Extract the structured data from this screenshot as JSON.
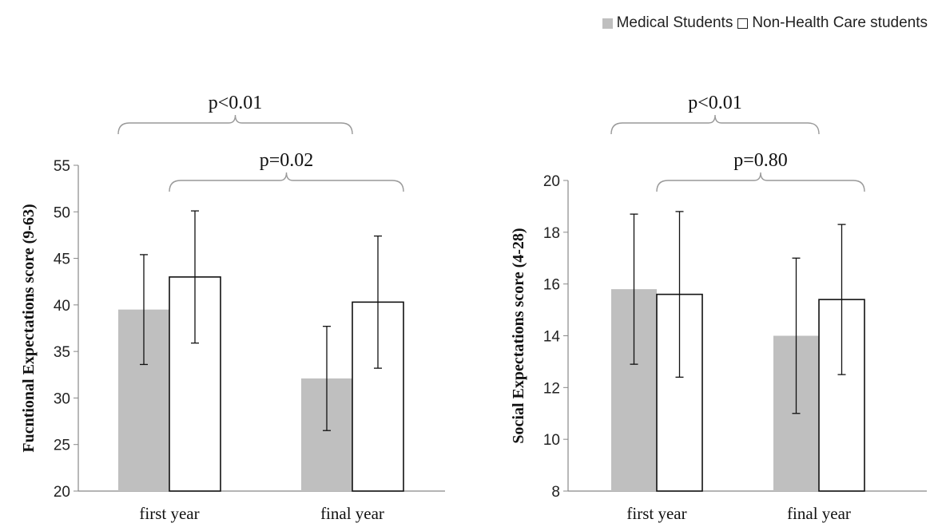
{
  "legend": {
    "items": [
      {
        "label": "Medical Students",
        "color": "#bfbfbf",
        "style": "filled"
      },
      {
        "label": "Non-Health Care students",
        "color": "#ffffff",
        "style": "outlined"
      }
    ]
  },
  "chart_data": [
    {
      "type": "bar",
      "ylabel": "Fucntional Expectations score (9-63)",
      "xlabel": "",
      "ylim": [
        20,
        55
      ],
      "yticks": [
        20,
        25,
        30,
        35,
        40,
        45,
        50,
        55
      ],
      "categories": [
        "first year",
        "final year"
      ],
      "series": [
        {
          "name": "Medical Students",
          "values": [
            39.5,
            32.1
          ],
          "err_low": [
            33.6,
            26.5
          ],
          "err_high": [
            45.4,
            37.7
          ],
          "color": "#bfbfbf"
        },
        {
          "name": "Non-Health Care students",
          "values": [
            43.0,
            40.3
          ],
          "err_low": [
            35.9,
            33.2
          ],
          "err_high": [
            50.1,
            47.4
          ],
          "color": "#ffffff"
        }
      ],
      "annotations": [
        {
          "text": "p<0.01",
          "from": {
            "category": 0,
            "series": 0
          },
          "to": {
            "category": 1,
            "series": 0
          },
          "level": 2
        },
        {
          "text": "p=0.02",
          "from": {
            "category": 0,
            "series": 1
          },
          "to": {
            "category": 1,
            "series": 1
          },
          "level": 1
        }
      ],
      "grid": false,
      "legend_position": "top-right"
    },
    {
      "type": "bar",
      "ylabel": "Social Expectations score (4-28)",
      "xlabel": "",
      "ylim": [
        8,
        20
      ],
      "yticks": [
        8,
        10,
        12,
        14,
        16,
        18,
        20
      ],
      "categories": [
        "first year",
        "final year"
      ],
      "series": [
        {
          "name": "Medical Students",
          "values": [
            15.8,
            14.0
          ],
          "err_low": [
            12.9,
            11.0
          ],
          "err_high": [
            18.7,
            17.0
          ],
          "color": "#bfbfbf"
        },
        {
          "name": "Non-Health Care students",
          "values": [
            15.6,
            15.4
          ],
          "err_low": [
            12.4,
            12.5
          ],
          "err_high": [
            18.8,
            18.3
          ],
          "color": "#ffffff"
        }
      ],
      "annotations": [
        {
          "text": "p<0.01",
          "from": {
            "category": 0,
            "series": 0
          },
          "to": {
            "category": 1,
            "series": 0
          },
          "level": 2
        },
        {
          "text": "p=0.80",
          "from": {
            "category": 0,
            "series": 1
          },
          "to": {
            "category": 1,
            "series": 1
          },
          "level": 1
        }
      ],
      "grid": false,
      "legend_position": "top-right"
    }
  ]
}
